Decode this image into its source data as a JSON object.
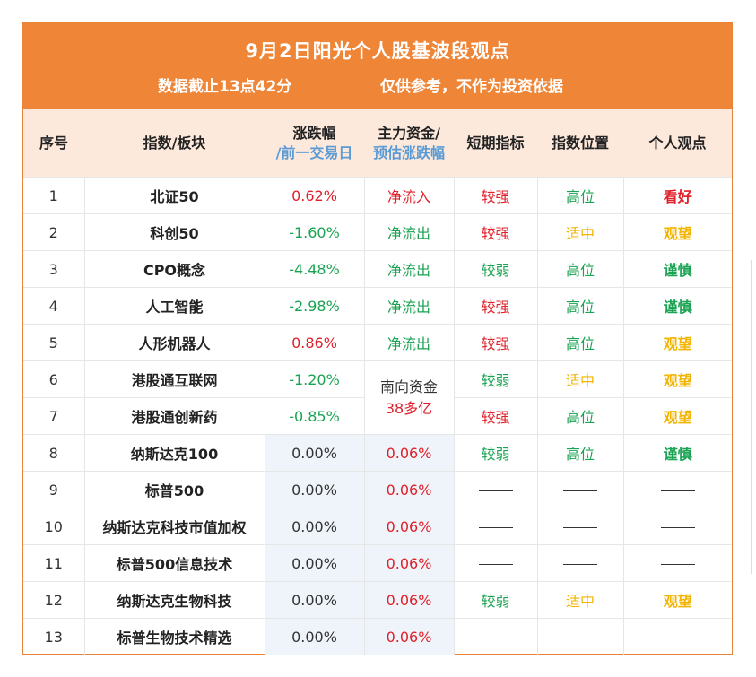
{
  "header": {
    "title": "9月2日阳光个人股基波段观点",
    "cutoff": "数据截止13点42分",
    "disclaimer": "仅供参考，不作为投资依据"
  },
  "columns": {
    "seq": "序号",
    "index": "指数/板块",
    "change": "涨跌幅",
    "change_sub": "/前一交易日",
    "fund": "主力资金/",
    "fund_sub": "预估涨跌幅",
    "short": "短期指标",
    "position": "指数位置",
    "opinion": "个人观点"
  },
  "southbound": {
    "line1": "南向资金",
    "line2": "38多亿"
  },
  "colors": {
    "red": "#e0202a",
    "green": "#1aa352",
    "yellow": "#f2b400",
    "banner": "#ef8537"
  },
  "rows": [
    {
      "seq": "1",
      "name": "北证50",
      "change": "0.62%",
      "fund": "净流入",
      "short": "较强",
      "position": "高位",
      "opinion": "看好"
    },
    {
      "seq": "2",
      "name": "科创50",
      "change": "-1.60%",
      "fund": "净流出",
      "short": "较强",
      "position": "适中",
      "opinion": "观望"
    },
    {
      "seq": "3",
      "name": "CPO概念",
      "change": "-4.48%",
      "fund": "净流出",
      "short": "较弱",
      "position": "高位",
      "opinion": "谨慎"
    },
    {
      "seq": "4",
      "name": "人工智能",
      "change": "-2.98%",
      "fund": "净流出",
      "short": "较强",
      "position": "高位",
      "opinion": "谨慎"
    },
    {
      "seq": "5",
      "name": "人形机器人",
      "change": "0.86%",
      "fund": "净流出",
      "short": "较强",
      "position": "高位",
      "opinion": "观望"
    },
    {
      "seq": "6",
      "name": "港股通互联网",
      "change": "-1.20%",
      "short": "较弱",
      "position": "适中",
      "opinion": "观望"
    },
    {
      "seq": "7",
      "name": "港股通创新药",
      "change": "-0.85%",
      "short": "较强",
      "position": "高位",
      "opinion": "观望"
    },
    {
      "seq": "8",
      "name": "纳斯达克100",
      "change": "0.00%",
      "fund": "0.06%",
      "short": "较弱",
      "position": "高位",
      "opinion": "谨慎"
    },
    {
      "seq": "9",
      "name": "标普500",
      "change": "0.00%",
      "fund": "0.06%"
    },
    {
      "seq": "10",
      "name": "纳斯达克科技市值加权",
      "change": "0.00%",
      "fund": "0.06%"
    },
    {
      "seq": "11",
      "name": "标普500信息技术",
      "change": "0.00%",
      "fund": "0.06%"
    },
    {
      "seq": "12",
      "name": "纳斯达克生物科技",
      "change": "0.00%",
      "fund": "0.06%",
      "short": "较弱",
      "position": "适中",
      "opinion": "观望"
    },
    {
      "seq": "13",
      "name": "标普生物技术精选",
      "change": "0.00%",
      "fund": "0.06%"
    }
  ]
}
